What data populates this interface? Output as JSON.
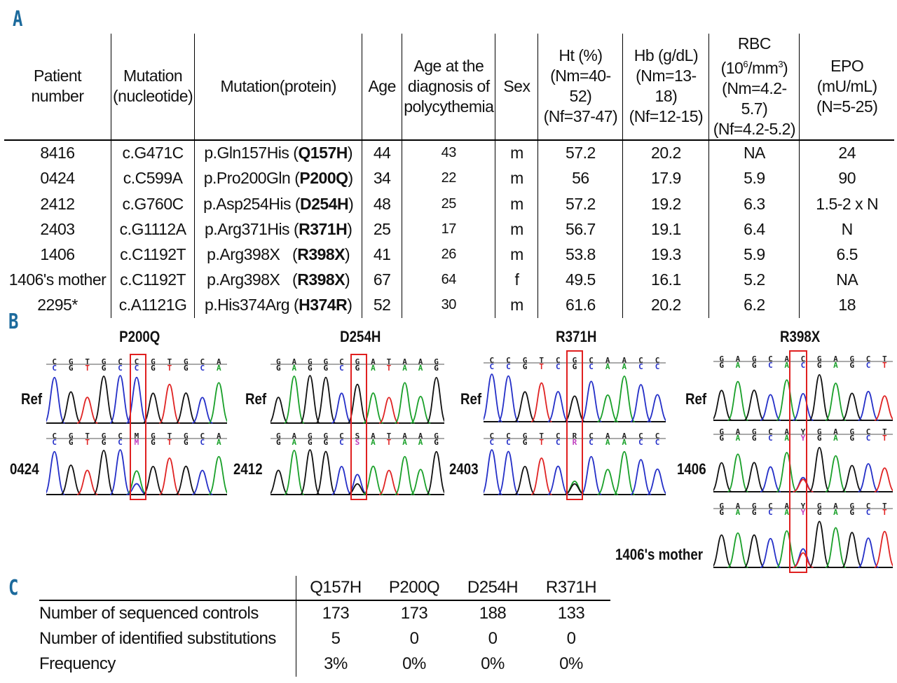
{
  "panels": {
    "a": "A",
    "b": "B",
    "c": "C"
  },
  "table_a": {
    "headers": {
      "patient": "Patient number",
      "mutation_nt_1": "Mutation",
      "mutation_nt_2": "(nucleotide)",
      "mutation_protein": "Mutation(protein)",
      "age": "Age",
      "age_dx_1": "Age at the",
      "age_dx_2": "diagnosis of",
      "age_dx_3": "polycythemia",
      "sex": "Sex",
      "ht_1": "Ht (%)",
      "ht_2": "(Nm=40-52)",
      "ht_3": "(Nf=37-47)",
      "hb_1": "Hb (g/dL)",
      "hb_2": "(Nm=13-18)",
      "hb_3": "(Nf=12-15)",
      "rbc_1": "RBC",
      "rbc_2a": "(10",
      "rbc_2sup": "6",
      "rbc_2b": "/mm",
      "rbc_2sup2": "3",
      "rbc_2c": ")",
      "rbc_3": "(Nm=4.2-5.7)",
      "rbc_4": "(Nf=4.2-5.2)",
      "epo_1": "EPO (mU/mL)",
      "epo_2": "(N=5-25)"
    },
    "rows": [
      {
        "patient": "8416",
        "nt": "c.G471C",
        "prot": "p.Gln157His (",
        "prot_b": "Q157H",
        "prot_end": ")",
        "age": "44",
        "age_dx": "43",
        "sex": "m",
        "ht": "57.2",
        "hb": "20.2",
        "rbc": "NA",
        "epo": "24"
      },
      {
        "patient": "0424",
        "nt": "c.C599A",
        "prot": "p.Pro200Gln (",
        "prot_b": "P200Q",
        "prot_end": ")",
        "age": "34",
        "age_dx": "22",
        "sex": "m",
        "ht": "56",
        "hb": "17.9",
        "rbc": "5.9",
        "epo": "90"
      },
      {
        "patient": "2412",
        "nt": "c.G760C",
        "prot": "p.Asp254His (",
        "prot_b": "D254H",
        "prot_end": ")",
        "age": "48",
        "age_dx": "25",
        "sex": "m",
        "ht": "57.2",
        "hb": "19.2",
        "rbc": "6.3",
        "epo": "1.5-2 x N"
      },
      {
        "patient": "2403",
        "nt": "c.G1112A",
        "prot": "p.Arg371His (",
        "prot_b": "R371H",
        "prot_end": ")",
        "age": "25",
        "age_dx": "17",
        "sex": "m",
        "ht": "56.7",
        "hb": "19.1",
        "rbc": "6.4",
        "epo": "N"
      },
      {
        "patient": "1406",
        "nt": "c.C1192T",
        "prot": "p.Arg398X   (",
        "prot_b": "R398X",
        "prot_end": ")",
        "age": "41",
        "age_dx": "26",
        "sex": "m",
        "ht": "53.8",
        "hb": "19.3",
        "rbc": "5.9",
        "epo": "6.5"
      },
      {
        "patient": "1406's mother",
        "nt": "c.C1192T",
        "prot": "p.Arg398X   (",
        "prot_b": "R398X",
        "prot_end": ")",
        "age": "67",
        "age_dx": "64",
        "sex": "f",
        "ht": "49.5",
        "hb": "16.1",
        "rbc": "5.2",
        "epo": "NA"
      },
      {
        "patient": "2295*",
        "nt": "c.A1121G",
        "prot": "p.His374Arg (",
        "prot_b": "H374R",
        "prot_end": ")",
        "age": "52",
        "age_dx": "30",
        "sex": "m",
        "ht": "61.6",
        "hb": "20.2",
        "rbc": "6.2",
        "epo": "18"
      }
    ]
  },
  "panel_b": {
    "titles": [
      "P200Q",
      "D254H",
      "R371H",
      "R398X"
    ],
    "labels": {
      "ref": "Ref",
      "s0424": "0424",
      "s2412": "2412",
      "s2403": "2403",
      "s1406": "1406",
      "mother": "1406's mother"
    },
    "sequences": {
      "p200q_ref": [
        "C",
        "G",
        "T",
        "G",
        "C",
        "C",
        "G",
        "T",
        "G",
        "C",
        "A"
      ],
      "p200q_mut": [
        "C",
        "G",
        "T",
        "G",
        "C",
        "M",
        "G",
        "T",
        "G",
        "C",
        "A"
      ],
      "d254h_ref": [
        "G",
        "A",
        "G",
        "G",
        "C",
        "G",
        "A",
        "T",
        "A",
        "A",
        "G"
      ],
      "d254h_mut": [
        "G",
        "A",
        "G",
        "G",
        "C",
        "S",
        "A",
        "T",
        "A",
        "A",
        "G"
      ],
      "r371h_ref": [
        "C",
        "C",
        "G",
        "T",
        "C",
        "G",
        "C",
        "A",
        "A",
        "C",
        "C"
      ],
      "r371h_mut": [
        "C",
        "C",
        "G",
        "T",
        "C",
        "R",
        "C",
        "A",
        "A",
        "C",
        "C"
      ],
      "r398x_ref": [
        "G",
        "A",
        "G",
        "C",
        "A",
        "C",
        "G",
        "A",
        "G",
        "C",
        "T"
      ],
      "r398x_mut": [
        "G",
        "A",
        "G",
        "C",
        "A",
        "Y",
        "G",
        "A",
        "G",
        "C",
        "T"
      ],
      "r398x_mother": [
        "G",
        "A",
        "G",
        "C",
        "A",
        "Y",
        "G",
        "A",
        "G",
        "C",
        "T"
      ]
    },
    "colors": {
      "A": "#1aa02a",
      "C": "#2530c8",
      "G": "#111111",
      "T": "#e02424",
      "mixed": "#c040c0",
      "box": "#e02020"
    }
  },
  "table_c": {
    "headers": [
      "Q157H",
      "P200Q",
      "D254H",
      "R371H"
    ],
    "rows": [
      {
        "label": "Number of sequenced controls",
        "values": [
          "173",
          "173",
          "188",
          "133"
        ]
      },
      {
        "label": "Number of identified substitutions",
        "values": [
          "5",
          "0",
          "0",
          "0"
        ]
      },
      {
        "label": "Frequency",
        "values": [
          "3%",
          "0%",
          "0%",
          "0%"
        ]
      }
    ]
  }
}
